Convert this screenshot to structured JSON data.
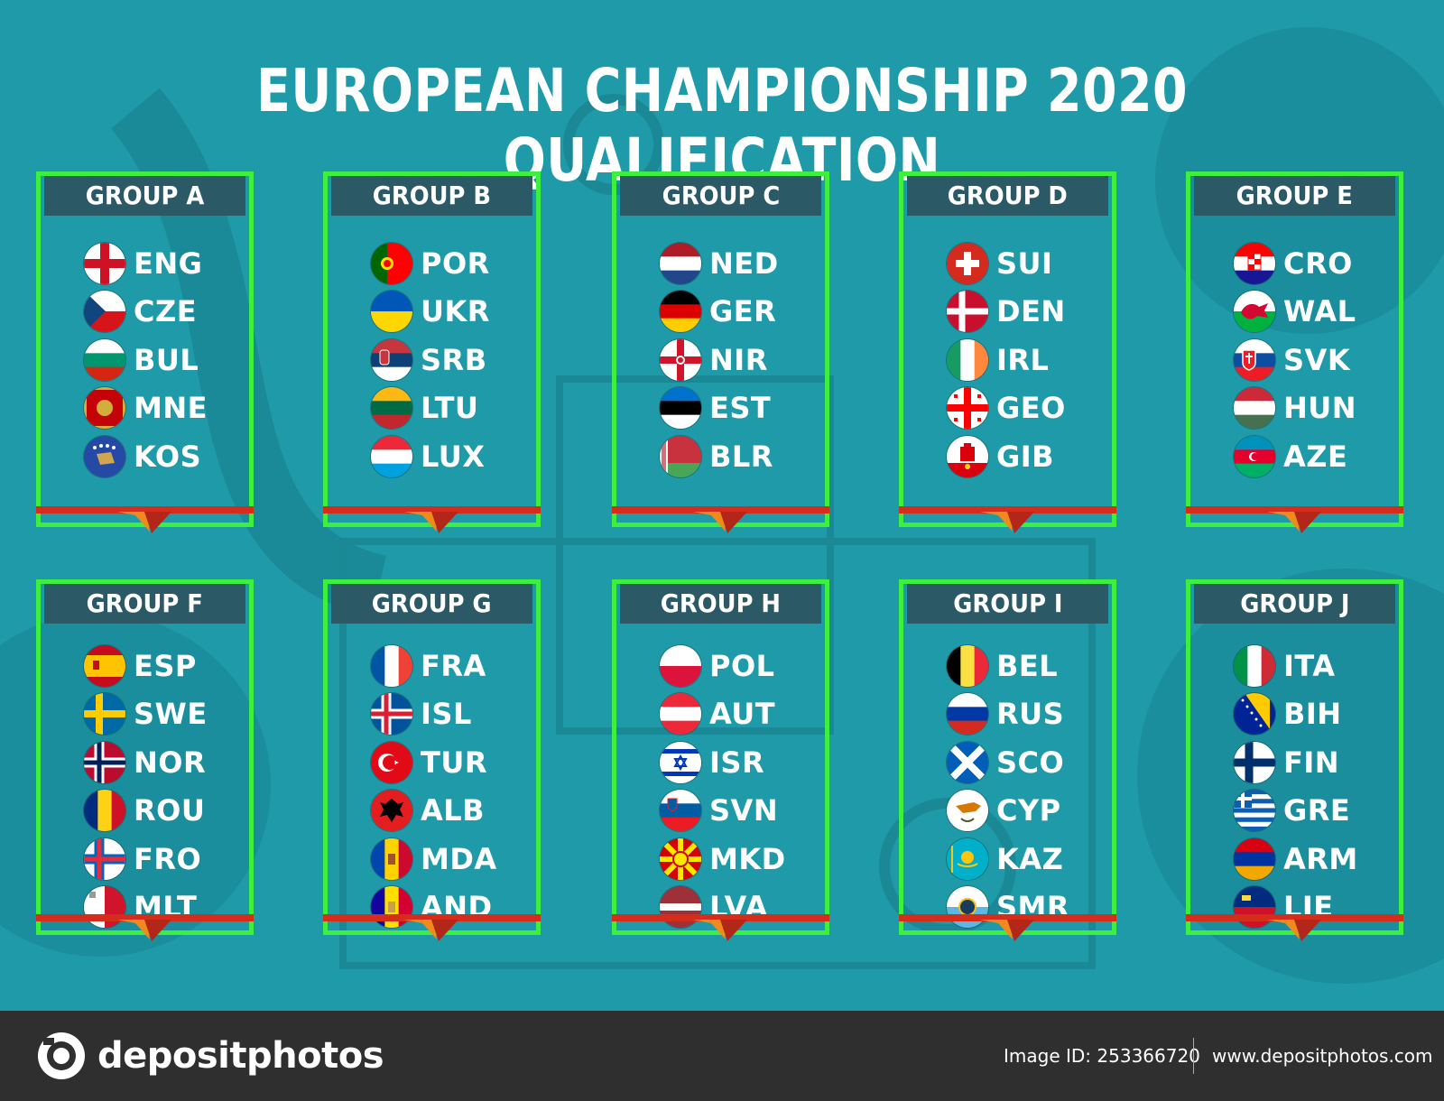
{
  "title": "EUROPEAN CHAMPIONSHIP 2020 QUALIFICATION",
  "colors": {
    "background": "#1f9aa9",
    "frame": "#3df03d",
    "header": "#2b5a66",
    "footer": "#2f2f2f"
  },
  "groups": [
    {
      "name": "GROUP A",
      "teams": [
        {
          "code": "ENG",
          "flag": "england-flag-icon"
        },
        {
          "code": "CZE",
          "flag": "czech-flag-icon"
        },
        {
          "code": "BUL",
          "flag": "bulgaria-flag-icon"
        },
        {
          "code": "MNE",
          "flag": "montenegro-flag-icon"
        },
        {
          "code": "KOS",
          "flag": "kosovo-flag-icon"
        }
      ]
    },
    {
      "name": "GROUP B",
      "teams": [
        {
          "code": "POR",
          "flag": "portugal-flag-icon"
        },
        {
          "code": "UKR",
          "flag": "ukraine-flag-icon"
        },
        {
          "code": "SRB",
          "flag": "serbia-flag-icon"
        },
        {
          "code": "LTU",
          "flag": "lithuania-flag-icon"
        },
        {
          "code": "LUX",
          "flag": "luxembourg-flag-icon"
        }
      ]
    },
    {
      "name": "GROUP C",
      "teams": [
        {
          "code": "NED",
          "flag": "netherlands-flag-icon"
        },
        {
          "code": "GER",
          "flag": "germany-flag-icon"
        },
        {
          "code": "NIR",
          "flag": "northern-ireland-flag-icon"
        },
        {
          "code": "EST",
          "flag": "estonia-flag-icon"
        },
        {
          "code": "BLR",
          "flag": "belarus-flag-icon"
        }
      ]
    },
    {
      "name": "GROUP D",
      "teams": [
        {
          "code": "SUI",
          "flag": "switzerland-flag-icon"
        },
        {
          "code": "DEN",
          "flag": "denmark-flag-icon"
        },
        {
          "code": "IRL",
          "flag": "ireland-flag-icon"
        },
        {
          "code": "GEO",
          "flag": "georgia-flag-icon"
        },
        {
          "code": "GIB",
          "flag": "gibraltar-flag-icon"
        }
      ]
    },
    {
      "name": "GROUP E",
      "teams": [
        {
          "code": "CRO",
          "flag": "croatia-flag-icon"
        },
        {
          "code": "WAL",
          "flag": "wales-flag-icon"
        },
        {
          "code": "SVK",
          "flag": "slovakia-flag-icon"
        },
        {
          "code": "HUN",
          "flag": "hungary-flag-icon"
        },
        {
          "code": "AZE",
          "flag": "azerbaijan-flag-icon"
        }
      ]
    },
    {
      "name": "GROUP F",
      "teams": [
        {
          "code": "ESP",
          "flag": "spain-flag-icon"
        },
        {
          "code": "SWE",
          "flag": "sweden-flag-icon"
        },
        {
          "code": "NOR",
          "flag": "norway-flag-icon"
        },
        {
          "code": "ROU",
          "flag": "romania-flag-icon"
        },
        {
          "code": "FRO",
          "flag": "faroe-islands-flag-icon"
        },
        {
          "code": "MLT",
          "flag": "malta-flag-icon"
        }
      ]
    },
    {
      "name": "GROUP G",
      "teams": [
        {
          "code": "FRA",
          "flag": "france-flag-icon"
        },
        {
          "code": "ISL",
          "flag": "iceland-flag-icon"
        },
        {
          "code": "TUR",
          "flag": "turkey-flag-icon"
        },
        {
          "code": "ALB",
          "flag": "albania-flag-icon"
        },
        {
          "code": "MDA",
          "flag": "moldova-flag-icon"
        },
        {
          "code": "AND",
          "flag": "andorra-flag-icon"
        }
      ]
    },
    {
      "name": "GROUP H",
      "teams": [
        {
          "code": "POL",
          "flag": "poland-flag-icon"
        },
        {
          "code": "AUT",
          "flag": "austria-flag-icon"
        },
        {
          "code": "ISR",
          "flag": "israel-flag-icon"
        },
        {
          "code": "SVN",
          "flag": "slovenia-flag-icon"
        },
        {
          "code": "MKD",
          "flag": "north-macedonia-flag-icon"
        },
        {
          "code": "LVA",
          "flag": "latvia-flag-icon"
        }
      ]
    },
    {
      "name": "GROUP I",
      "teams": [
        {
          "code": "BEL",
          "flag": "belgium-flag-icon"
        },
        {
          "code": "RUS",
          "flag": "russia-flag-icon"
        },
        {
          "code": "SCO",
          "flag": "scotland-flag-icon"
        },
        {
          "code": "CYP",
          "flag": "cyprus-flag-icon"
        },
        {
          "code": "KAZ",
          "flag": "kazakhstan-flag-icon"
        },
        {
          "code": "SMR",
          "flag": "san-marino-flag-icon"
        }
      ]
    },
    {
      "name": "GROUP J",
      "teams": [
        {
          "code": "ITA",
          "flag": "italy-flag-icon"
        },
        {
          "code": "BIH",
          "flag": "bosnia-flag-icon"
        },
        {
          "code": "FIN",
          "flag": "finland-flag-icon"
        },
        {
          "code": "GRE",
          "flag": "greece-flag-icon"
        },
        {
          "code": "ARM",
          "flag": "armenia-flag-icon"
        },
        {
          "code": "LIE",
          "flag": "liechtenstein-flag-icon"
        }
      ]
    }
  ],
  "watermark": "depositphotos",
  "footer": {
    "logo_text": "depositphotos",
    "image_id": "Image ID: 253366720",
    "site": "www.depositphotos.com"
  }
}
